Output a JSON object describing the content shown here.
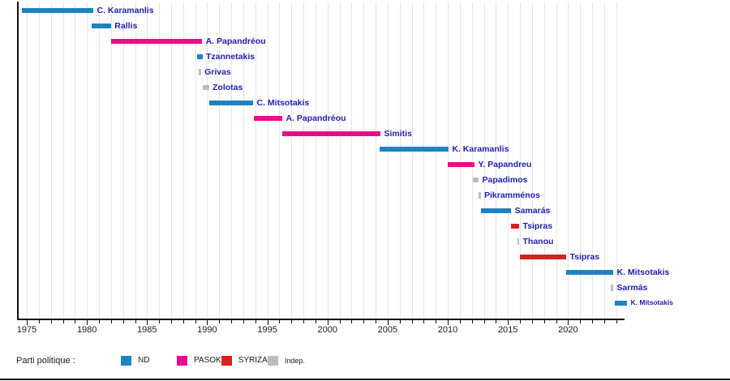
{
  "chart_data": {
    "type": "timeline-gantt",
    "title": "",
    "xlabel": "",
    "ylabel": "",
    "x_axis": {
      "min_year": 1974.2,
      "max_year": 2024.7,
      "major_tick_labels": [
        "1975",
        "1980",
        "1985",
        "1990",
        "1995",
        "2000",
        "2005",
        "2010",
        "2015",
        "2020"
      ],
      "major_tick_years": [
        1975,
        1980,
        1985,
        1990,
        1995,
        2000,
        2005,
        2010,
        2015,
        2020
      ],
      "minor_tick_every_years": 1,
      "grid": "vertical-yearly"
    },
    "parties": {
      "ND": "#1f82c2",
      "PASOK": "#e60e8c",
      "SYRIZA": "#d8221f",
      "Indep.": "#bcbcbc"
    },
    "rows": [
      {
        "label": "C. Karamanlis",
        "party": "ND",
        "start": 1974.6,
        "end": 1980.53,
        "shape": "bar"
      },
      {
        "label": "Rallis",
        "party": "ND",
        "start": 1980.4,
        "end": 1982.0,
        "shape": "bar"
      },
      {
        "label": "A. Papandréou",
        "party": "PASOK",
        "start": 1982.0,
        "end": 1989.57,
        "shape": "bar"
      },
      {
        "label": "Tzannetakis",
        "party": "ND",
        "start": 1989.16,
        "end": 1989.6,
        "shape": "bar"
      },
      {
        "label": "Grivas",
        "party": "Indep.",
        "start": 1989.3,
        "end": 1989.46,
        "shape": "tick"
      },
      {
        "label": "Zolotas",
        "party": "Indep.",
        "start": 1989.63,
        "end": 1990.14,
        "shape": "bar"
      },
      {
        "label": "C. Mitsotakis",
        "party": "ND",
        "start": 1990.17,
        "end": 1993.81,
        "shape": "bar"
      },
      {
        "label": "A. Papandréou",
        "party": "PASOK",
        "start": 1993.88,
        "end": 1996.24,
        "shape": "bar"
      },
      {
        "label": "Simitis",
        "party": "PASOK",
        "start": 1996.24,
        "end": 2004.4,
        "shape": "bar"
      },
      {
        "label": "K. Karamanlis",
        "party": "ND",
        "start": 2004.33,
        "end": 2010.06,
        "shape": "bar"
      },
      {
        "label": "Y. Papandreu",
        "party": "PASOK",
        "start": 2010.0,
        "end": 2012.22,
        "shape": "bar"
      },
      {
        "label": "Papadimos",
        "party": "Indep.",
        "start": 2012.09,
        "end": 2012.56,
        "shape": "bar"
      },
      {
        "label": "Pikramménos",
        "party": "Indep.",
        "start": 2012.56,
        "end": 2012.73,
        "shape": "tick"
      },
      {
        "label": "Samarás",
        "party": "ND",
        "start": 2012.76,
        "end": 2015.26,
        "shape": "bar"
      },
      {
        "label": "Tsipras",
        "party": "SYRIZA",
        "start": 2015.26,
        "end": 2015.93,
        "shape": "bar"
      },
      {
        "label": "Thanou",
        "party": "Indep.",
        "start": 2015.76,
        "end": 2015.93,
        "shape": "tick"
      },
      {
        "label": "Tsipras",
        "party": "SYRIZA",
        "start": 2016.0,
        "end": 2019.84,
        "shape": "bar"
      },
      {
        "label": "K. Mitsotakis",
        "party": "ND",
        "start": 2019.84,
        "end": 2023.75,
        "shape": "bar"
      },
      {
        "label": "Sarmás",
        "party": "Indep.",
        "start": 2023.58,
        "end": 2023.75,
        "shape": "tick"
      },
      {
        "label": "K. Mitsotakis",
        "party": "ND",
        "start": 2023.88,
        "end": 2024.9,
        "shape": "bar",
        "small_label": true
      }
    ]
  },
  "legend": {
    "title": "Parti politique :",
    "items": [
      {
        "label": "ND",
        "party": "ND"
      },
      {
        "label": "PASOK",
        "party": "PASOK"
      },
      {
        "label": "SYRIZA",
        "party": "SYRIZA"
      },
      {
        "label": "Indep.",
        "party": "Indep.",
        "small": true
      }
    ]
  },
  "colors": {
    "name_label_text": "#1f1cb4",
    "axis_text": "#1a1a1a",
    "gridline": "#e6e6e6",
    "axis_line": "#111111",
    "background": "#ffffff"
  }
}
